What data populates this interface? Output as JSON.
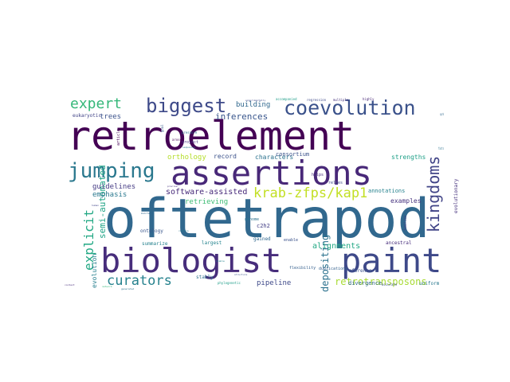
{
  "words": [
    {
      "text": "oftetrapod",
      "color": "#31688e"
    },
    {
      "text": "retroelement",
      "color": "#440154"
    },
    {
      "text": "assertions",
      "color": "#482878"
    },
    {
      "text": "biologist",
      "color": "#472d7b"
    },
    {
      "text": "paint",
      "color": "#3e4989"
    },
    {
      "text": "coevolution",
      "color": "#3b528b"
    },
    {
      "text": "jumping",
      "color": "#2a788e"
    },
    {
      "text": "biggest",
      "color": "#3e4a89"
    },
    {
      "text": "kingdoms",
      "color": "#414487"
    },
    {
      "text": "expert",
      "color": "#35b779"
    },
    {
      "text": "krab-zfps/kap1",
      "color": "#c2df23"
    },
    {
      "text": "curators",
      "color": "#26828e"
    },
    {
      "text": "explicit",
      "color": "#22a884"
    },
    {
      "text": "retrotransposons",
      "color": "#a8db34"
    },
    {
      "text": "depositing",
      "color": "#2c728e"
    },
    {
      "text": "semi-automated",
      "color": "#20a486"
    },
    {
      "text": "inferences",
      "color": "#39568c"
    },
    {
      "text": "software-assisted",
      "color": "#472a7a"
    },
    {
      "text": "building",
      "color": "#31688e"
    },
    {
      "text": "trees",
      "color": "#3b528b"
    },
    {
      "text": "orthology",
      "color": "#b5de2b"
    },
    {
      "text": "record",
      "color": "#3b528b"
    },
    {
      "text": "characters",
      "color": "#2c728e"
    },
    {
      "text": "guidelines",
      "color": "#443a83"
    },
    {
      "text": "emphasis",
      "color": "#2a788e"
    },
    {
      "text": "retrieving",
      "color": "#3dbc74"
    },
    {
      "text": "consortium",
      "color": "#3b528b"
    },
    {
      "text": "strengths",
      "color": "#1fa088"
    },
    {
      "text": "annotations",
      "color": "#26828e"
    },
    {
      "text": "alignments",
      "color": "#22a884"
    },
    {
      "text": "examples",
      "color": "#46327e"
    },
    {
      "text": "evolution",
      "color": "#277f8e"
    },
    {
      "text": "pipeline",
      "color": "#3e4989"
    },
    {
      "text": "divergence",
      "color": "#31688e"
    },
    {
      "text": "ontology",
      "color": "#39568c"
    },
    {
      "text": "summarize",
      "color": "#26828e"
    },
    {
      "text": "c2h2",
      "color": "#433e85"
    },
    {
      "text": "gained",
      "color": "#31688e"
    },
    {
      "text": "largest",
      "color": "#25848e"
    },
    {
      "text": "ancestral",
      "color": "#472d7b"
    },
    {
      "text": "evolutionary",
      "color": "#46327e"
    },
    {
      "text": "eukaryotic",
      "color": "#414487"
    },
    {
      "text": "stably",
      "color": "#2d708e"
    },
    {
      "text": "enable",
      "color": "#3b528b"
    },
    {
      "text": "genome",
      "color": "#2c728e"
    },
    {
      "text": "helps",
      "color": "#472d7b"
    },
    {
      "text": "reference",
      "color": "#3b528b"
    },
    {
      "text": "flexibility",
      "color": "#35608d"
    },
    {
      "text": "duplications",
      "color": "#34618d"
    },
    {
      "text": "uniform",
      "color": "#2a788e"
    },
    {
      "text": "accurate",
      "color": "#3b528b"
    },
    {
      "text": "phylogenetic",
      "color": "#1f9e89"
    },
    {
      "text": "article",
      "color": "#440154"
    },
    {
      "text": "project",
      "color": "#46327e"
    },
    {
      "text": "arose",
      "color": "#440154"
    },
    {
      "text": "relies",
      "color": "#3e4989"
    },
    {
      "text": "goal",
      "color": "#365c8d"
    },
    {
      "text": "pressure",
      "color": "#2c728e"
    },
    {
      "text": "sequences",
      "color": "#2a788e"
    },
    {
      "text": "highly",
      "color": "#482878"
    },
    {
      "text": "multiple",
      "color": "#46327e"
    },
    {
      "text": "regression",
      "color": "#3e4989"
    },
    {
      "text": "accompanied",
      "color": "#1f9e89"
    },
    {
      "text": "experimentally",
      "color": "#3e4989"
    },
    {
      "text": "supported",
      "color": "#31688e"
    },
    {
      "text": "facts",
      "color": "#2c728e"
    },
    {
      "text": "families",
      "color": "#443983"
    },
    {
      "text": "precise",
      "color": "#46327e"
    },
    {
      "text": "maintains",
      "color": "#31688e"
    },
    {
      "text": "compare",
      "color": "#2a788e"
    },
    {
      "text": "human",
      "color": "#404688"
    },
    {
      "text": "structure",
      "color": "#3b528b"
    },
    {
      "text": "generated",
      "color": "#2c728e"
    },
    {
      "text": "network",
      "color": "#35b779"
    },
    {
      "text": "context",
      "color": "#472d7b"
    },
    {
      "text": "stable",
      "color": "#26828e"
    }
  ]
}
